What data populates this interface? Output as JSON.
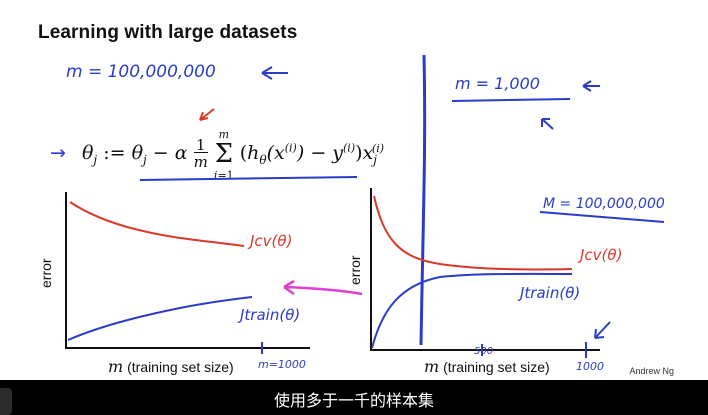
{
  "slide": {
    "title": "Learning with large datasets",
    "annotation_left": "m = 100,000,000",
    "annotation_right": "m = 1,000",
    "equation": "θj := θj − α (1/m) Σ_{i=1}^{m} (hθ(x^(i)) − y^(i)) xj^(i)",
    "credit": "Andrew Ng"
  },
  "plot_left": {
    "ylabel": "error",
    "xlabel": "(training set size)",
    "xvar": "m",
    "x_end_label": "m=1000",
    "curve_upper": "Jcv(θ)",
    "curve_lower": "Jtrain(θ)"
  },
  "plot_right": {
    "ylabel": "error",
    "xlabel": "(training set size)",
    "xvar": "m",
    "x_mid_label": "500",
    "x_end_label": "1000",
    "annotation": "M = 100,000,000",
    "curve_upper": "Jcv(θ)",
    "curve_lower": "Jtrain(θ)"
  },
  "subtitle": "使用多于一千的样本集",
  "colors": {
    "handwriting_blue": "#2a3cc8",
    "handwriting_red": "#d83a2a",
    "arrow_magenta": "#e040d0"
  }
}
